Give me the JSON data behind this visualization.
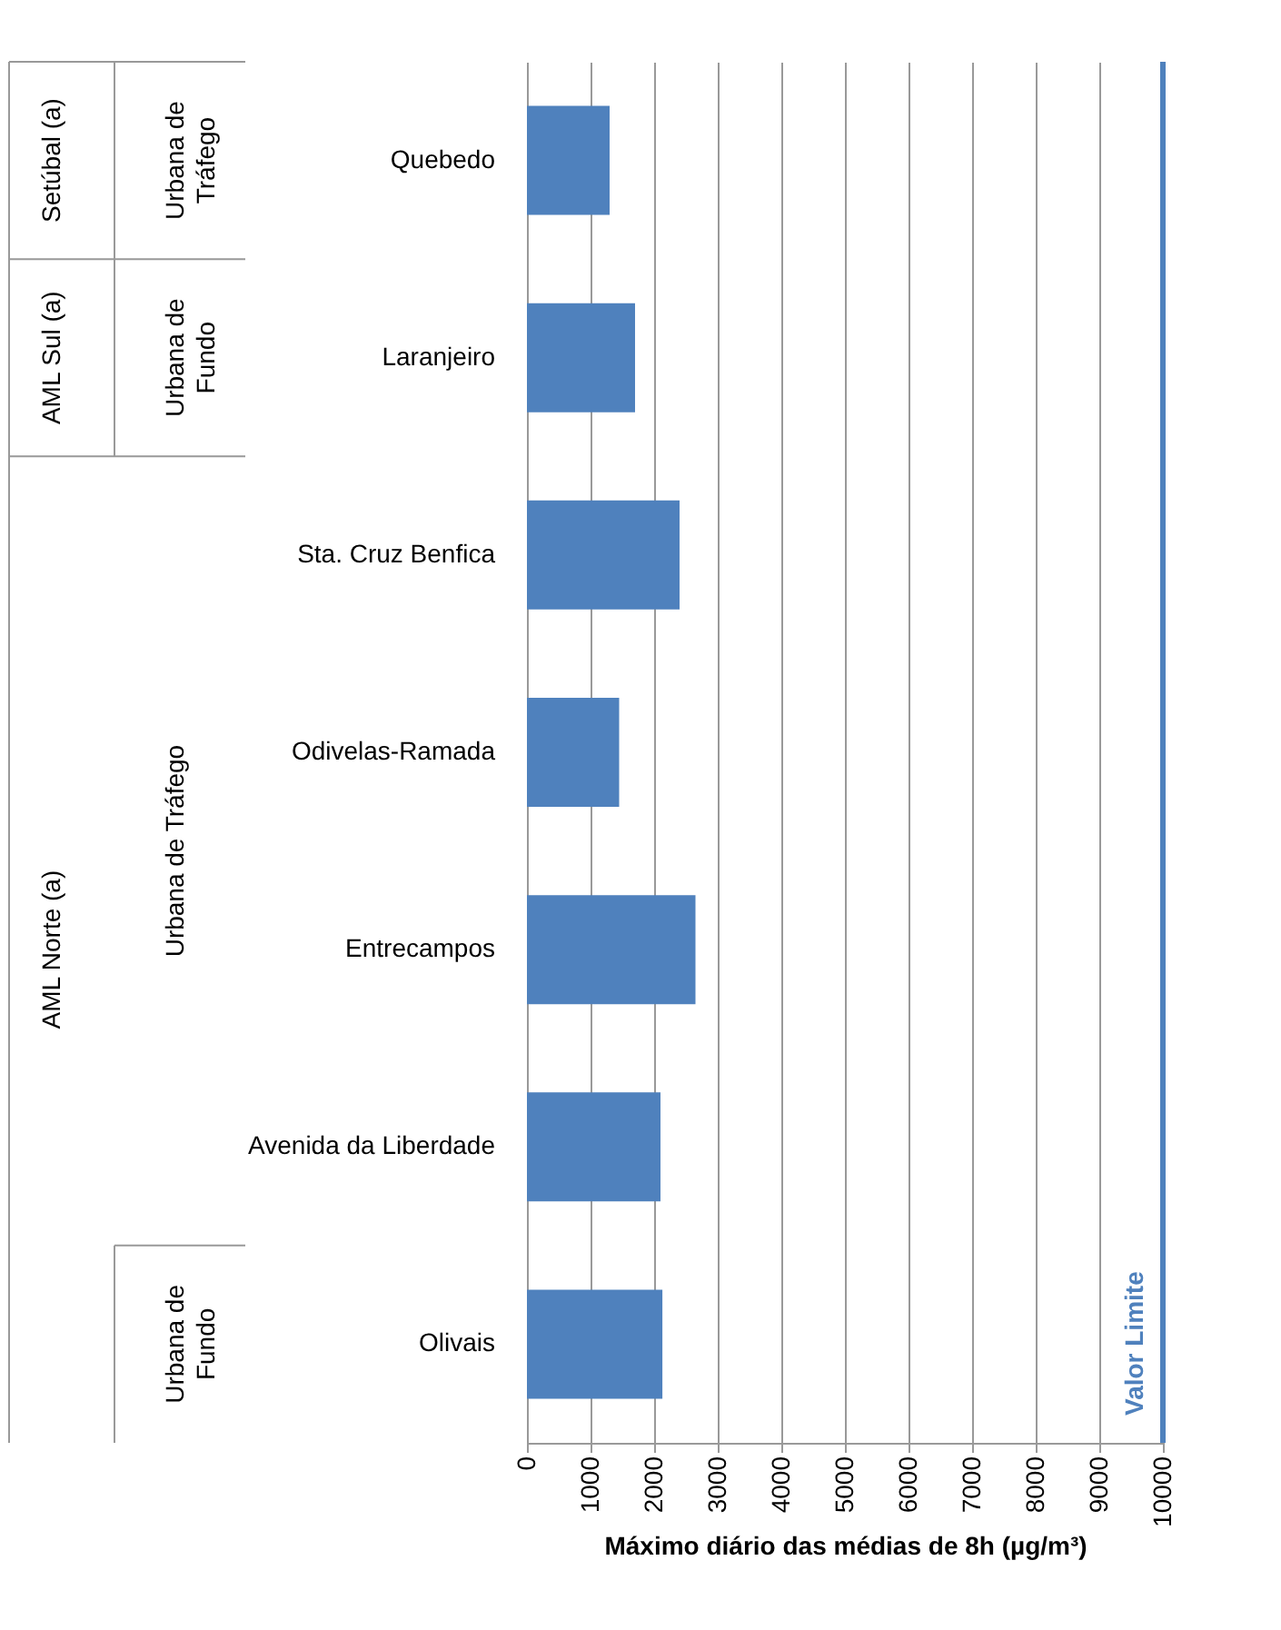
{
  "chart_data": {
    "type": "bar",
    "orientation": "horizontal",
    "categories": [
      "Quebedo",
      "Laranjeiro",
      "Sta. Cruz Benfica",
      "Odivelas-Ramada",
      "Entrecampos",
      "Avenida da Liberdade",
      "Olivais"
    ],
    "values": [
      1300,
      1700,
      2400,
      1450,
      2650,
      2100,
      2130
    ],
    "color": "#4f81bd",
    "xlabel": "Máximo diário das médias de 8h (µg/m³)",
    "xlim": [
      0,
      10000
    ],
    "xticks": [
      0,
      1000,
      2000,
      3000,
      4000,
      5000,
      6000,
      7000,
      8000,
      9000,
      10000
    ],
    "grid": "x",
    "ref_lines": [
      {
        "axis": "x",
        "value": 10000,
        "label": "Valor Limite",
        "color": "#4f81bd"
      }
    ],
    "annotations": [
      "Setúbal (a)",
      "Urbana de Tráfego",
      "AML Sul (a)",
      "Urbana de Fundo",
      "AML Norte (a)",
      "Urbana de Tráfego",
      "Urbana de Fundo"
    ]
  }
}
